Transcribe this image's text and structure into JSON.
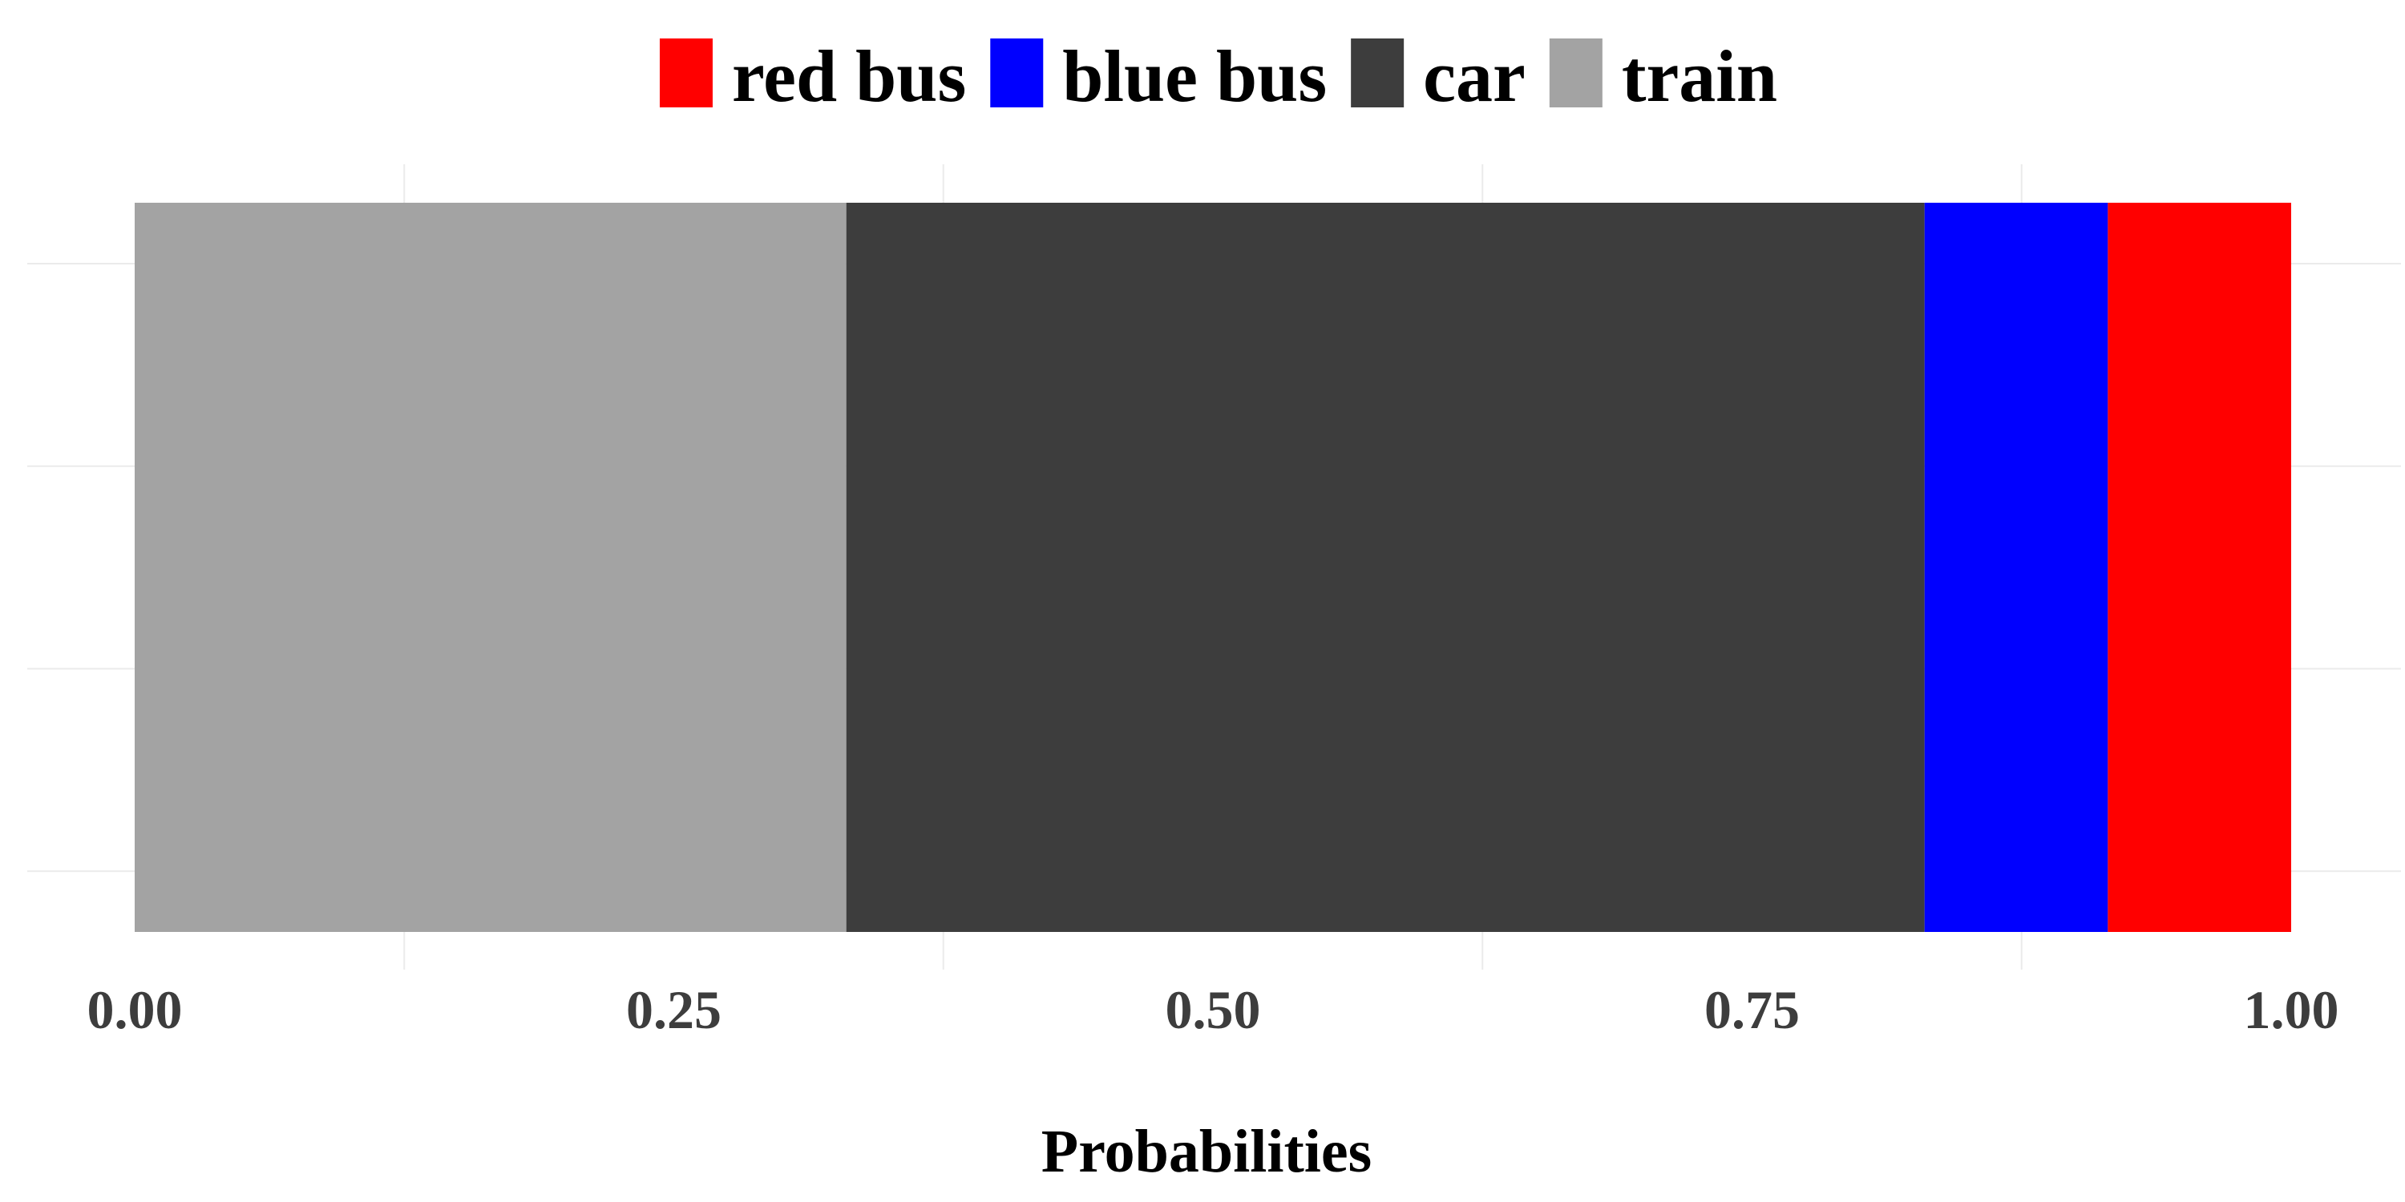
{
  "chart_data": {
    "type": "bar",
    "orientation": "horizontal",
    "stacked": true,
    "xlabel": "Probabilities",
    "ylabel": "",
    "xlim": [
      0,
      1
    ],
    "x_ticks": [
      "0.00",
      "0.25",
      "0.50",
      "0.75",
      "1.00"
    ],
    "x_tick_values": [
      0,
      0.25,
      0.5,
      0.75,
      1.0
    ],
    "legend_position": "top",
    "grid": true,
    "legend_order": [
      "red bus",
      "blue bus",
      "car",
      "train"
    ],
    "stack_order": [
      "train",
      "car",
      "blue bus",
      "red bus"
    ],
    "series": [
      {
        "name": "red bus",
        "value": 0.085,
        "color": "#ff0000"
      },
      {
        "name": "blue bus",
        "value": 0.085,
        "color": "#0000ff"
      },
      {
        "name": "car",
        "value": 0.5,
        "color": "#3d3d3d"
      },
      {
        "name": "train",
        "value": 0.33,
        "color": "#a3a3a3"
      }
    ]
  }
}
